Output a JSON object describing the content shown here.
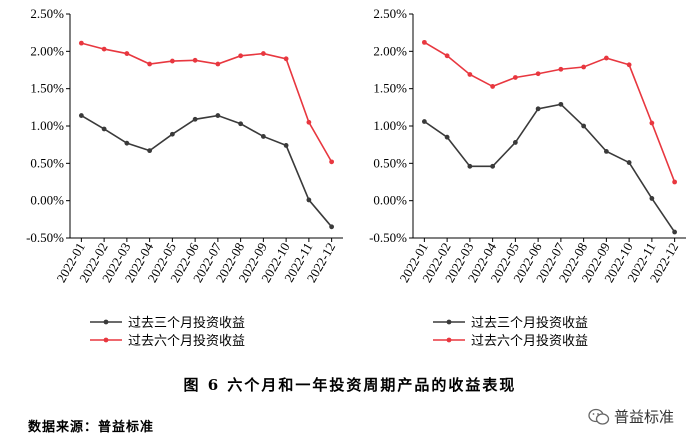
{
  "chart_data": [
    {
      "type": "line",
      "categories": [
        "2022-01",
        "2022-02",
        "2022-03",
        "2022-04",
        "2022-05",
        "2022-06",
        "2022-07",
        "2022-08",
        "2022-09",
        "2022-10",
        "2022-11",
        "2022-12"
      ],
      "series": [
        {
          "name": "过去三个月投资收益",
          "color": "#3a3a3a",
          "values": [
            1.14,
            0.96,
            0.77,
            0.67,
            0.89,
            1.09,
            1.14,
            1.03,
            0.86,
            0.74,
            0.01,
            -0.35
          ]
        },
        {
          "name": "过去六个月投资收益",
          "color": "#e8373f",
          "values": [
            2.11,
            2.03,
            1.97,
            1.83,
            1.87,
            1.88,
            1.83,
            1.94,
            1.97,
            1.9,
            1.05,
            0.52
          ]
        }
      ],
      "ylim": [
        -0.5,
        2.5
      ],
      "yticks": [
        "-0.50%",
        "0.00%",
        "0.50%",
        "1.00%",
        "1.50%",
        "2.00%",
        "2.50%"
      ],
      "grid": false,
      "legend": "bottom"
    },
    {
      "type": "line",
      "categories": [
        "2022-01",
        "2022-02",
        "2022-03",
        "2022-04",
        "2022-05",
        "2022-06",
        "2022-07",
        "2022-08",
        "2022-09",
        "2022-10",
        "2022-11",
        "2022-12"
      ],
      "series": [
        {
          "name": "过去三个月投资收益",
          "color": "#3a3a3a",
          "values": [
            1.06,
            0.85,
            0.46,
            0.46,
            0.78,
            1.23,
            1.29,
            1.0,
            0.66,
            0.51,
            0.03,
            -0.42
          ]
        },
        {
          "name": "过去六个月投资收益",
          "color": "#e8373f",
          "values": [
            2.12,
            1.94,
            1.69,
            1.53,
            1.65,
            1.7,
            1.76,
            1.79,
            1.91,
            1.82,
            1.04,
            0.25
          ]
        }
      ],
      "ylim": [
        -0.5,
        2.5
      ],
      "yticks": [
        "-0.50%",
        "0.00%",
        "0.50%",
        "1.00%",
        "1.50%",
        "2.00%",
        "2.50%"
      ],
      "grid": false,
      "legend": "bottom"
    }
  ],
  "caption": "图 6   六个月和一年投资周期产品的收益表现",
  "source": "数据来源：普益标准",
  "watermark": "普益标准"
}
